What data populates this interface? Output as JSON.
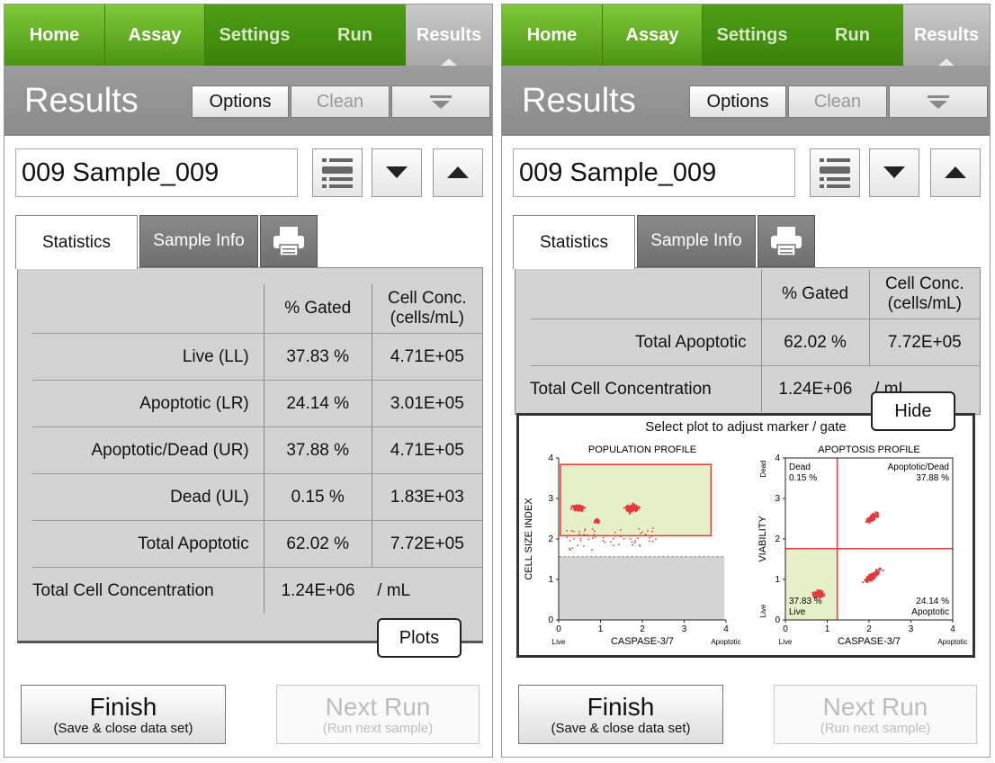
{
  "nav": {
    "home": "Home",
    "assay": "Assay",
    "settings": "Settings",
    "run": "Run",
    "results": "Results"
  },
  "header": {
    "title": "Results",
    "options": "Options",
    "clean": "Clean"
  },
  "sample": {
    "name": "009 Sample_009"
  },
  "tabs": {
    "statistics": "Statistics",
    "sample_info": "Sample Info"
  },
  "stats": {
    "col_gated": "% Gated",
    "col_conc_line1": "Cell Conc.",
    "col_conc_line2": "(cells/mL)",
    "rows": [
      {
        "label": "Live (LL)",
        "gated": "37.83 %",
        "conc": "4.71E+05"
      },
      {
        "label": "Apoptotic (LR)",
        "gated": "24.14 %",
        "conc": "3.01E+05"
      },
      {
        "label": "Apoptotic/Dead (UR)",
        "gated": "37.88 %",
        "conc": "4.71E+05"
      },
      {
        "label": "Dead (UL)",
        "gated": "0.15 %",
        "conc": "1.83E+03"
      },
      {
        "label": "Total Apoptotic",
        "gated": "62.02 %",
        "conc": "7.72E+05"
      }
    ],
    "total_label": "Total Cell Concentration",
    "total_value": "1.24E+06",
    "total_unit": "/ mL",
    "total_unit_short": "/ mL"
  },
  "buttons": {
    "plots": "Plots",
    "hide": "Hide",
    "finish": "Finish",
    "finish_sub": "(Save & close data set)",
    "next_run": "Next Run",
    "next_run_sub": "(Run next sample)"
  },
  "plots": {
    "hint": "Select plot to adjust marker / gate",
    "population": {
      "title": "POPULATION PROFILE",
      "ylabel": "CELL SIZE INDEX",
      "xlabel": "CASPASE-3/7",
      "x_left_label": "Live",
      "x_right_label": "Apoptotic",
      "ticks": [
        "0",
        "1",
        "2",
        "3",
        "4"
      ]
    },
    "apoptosis": {
      "title": "APOPTOSIS PROFILE",
      "ylabel": "VIABILITY",
      "xlabel": "CASPASE-3/7",
      "y_top_label": "Dead",
      "y_bottom_label": "Live",
      "x_left_label": "Live",
      "x_right_label": "Apoptotic",
      "ticks": [
        "0",
        "1",
        "2",
        "3",
        "4"
      ],
      "q_ul_name": "Dead",
      "q_ul_val": "0.15 %",
      "q_ur_name": "Apoptotic/Dead",
      "q_ur_val": "37.88 %",
      "q_ll_name": "Live",
      "q_ll_val": "37.83 %",
      "q_lr_name": "Apoptotic",
      "q_lr_val": "24.14 %"
    }
  },
  "colors": {
    "accent": "#5aa51a",
    "nav_active": "#7fc93a",
    "header": "#939393",
    "gate": "#e53a3a",
    "gate_fill": "#e6f0c8"
  }
}
